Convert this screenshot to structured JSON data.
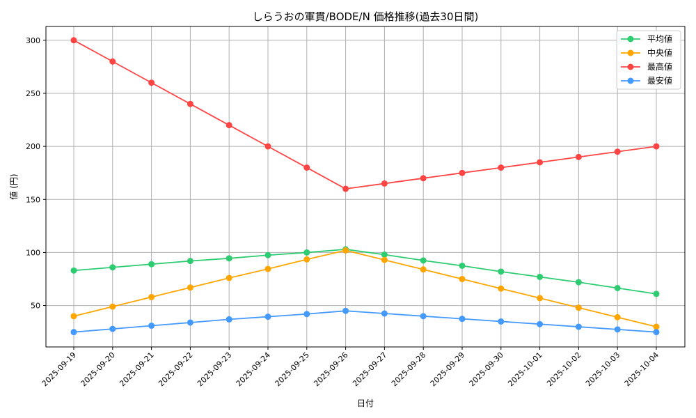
{
  "chart_data": {
    "type": "line",
    "title": "しらうおの軍貫/BODE/N 価格推移(過去30日間)",
    "xlabel": "日付",
    "ylabel": "値 (円)",
    "ylim": [
      11,
      313
    ],
    "yticks": [
      50,
      100,
      150,
      200,
      250,
      300
    ],
    "grid": true,
    "legend_position": "top-right",
    "categories": [
      "2025-09-19",
      "2025-09-20",
      "2025-09-21",
      "2025-09-22",
      "2025-09-23",
      "2025-09-24",
      "2025-09-25",
      "2025-09-26",
      "2025-09-27",
      "2025-09-28",
      "2025-09-29",
      "2025-09-30",
      "2025-10-01",
      "2025-10-02",
      "2025-10-03",
      "2025-10-04"
    ],
    "series": [
      {
        "name": "平均値",
        "color": "#2ecc71",
        "values": [
          83,
          86,
          89,
          92,
          94.5,
          97.5,
          100,
          103,
          98,
          92.5,
          87.5,
          82,
          77,
          72,
          66.5,
          61
        ]
      },
      {
        "name": "中央値",
        "color": "#ffa500",
        "values": [
          40,
          49,
          58,
          67,
          76,
          84.5,
          93.5,
          102,
          93,
          84,
          75,
          66,
          57,
          48,
          39,
          30
        ]
      },
      {
        "name": "最高値",
        "color": "#ff4444",
        "values": [
          300,
          280,
          260,
          240,
          220,
          200,
          180,
          160,
          165,
          170,
          175,
          180,
          185,
          190,
          195,
          200
        ]
      },
      {
        "name": "最安値",
        "color": "#4499ff",
        "values": [
          25,
          28,
          31,
          34,
          37,
          39.5,
          42,
          45,
          42.5,
          40,
          37.5,
          35,
          32.5,
          30,
          27.5,
          25
        ]
      }
    ]
  }
}
